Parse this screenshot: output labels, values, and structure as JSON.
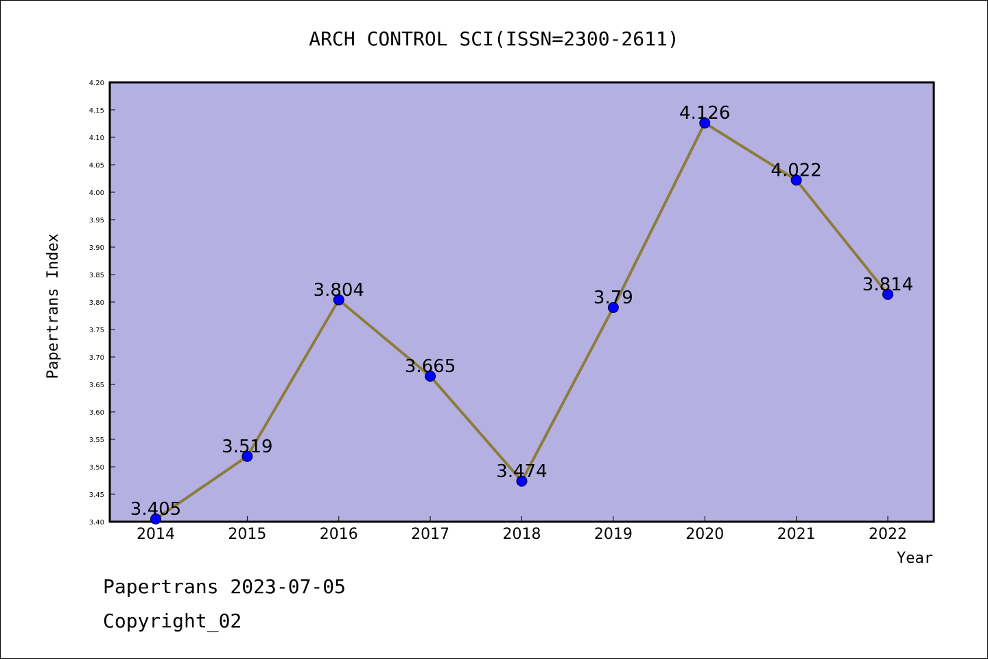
{
  "chart_data": {
    "type": "line",
    "title": "ARCH CONTROL SCI(ISSN=2300-2611)",
    "xlabel": "Year",
    "ylabel": "Papertrans Index",
    "categories": [
      "2014",
      "2015",
      "2016",
      "2017",
      "2018",
      "2019",
      "2020",
      "2021",
      "2022"
    ],
    "values": [
      3.405,
      3.519,
      3.804,
      3.665,
      3.474,
      3.79,
      4.126,
      4.022,
      3.814
    ],
    "data_labels": [
      "3.405",
      "3.519",
      "3.804",
      "3.665",
      "3.474",
      "3.79",
      "4.126",
      "4.022",
      "3.814"
    ],
    "ylim": [
      3.4,
      4.2
    ],
    "yticks": [
      "3.40",
      "3.45",
      "3.50",
      "3.55",
      "3.60",
      "3.65",
      "3.70",
      "3.75",
      "3.80",
      "3.85",
      "3.90",
      "3.95",
      "4.00",
      "4.05",
      "4.10",
      "4.15",
      "4.20"
    ],
    "grid": false,
    "colors": {
      "plot_background": "#b5b0e2",
      "line": "#8b7d3a",
      "marker": "#0000ff"
    }
  },
  "footer": {
    "source": "Papertrans 2023-07-05",
    "copyright": "Copyright_02"
  }
}
